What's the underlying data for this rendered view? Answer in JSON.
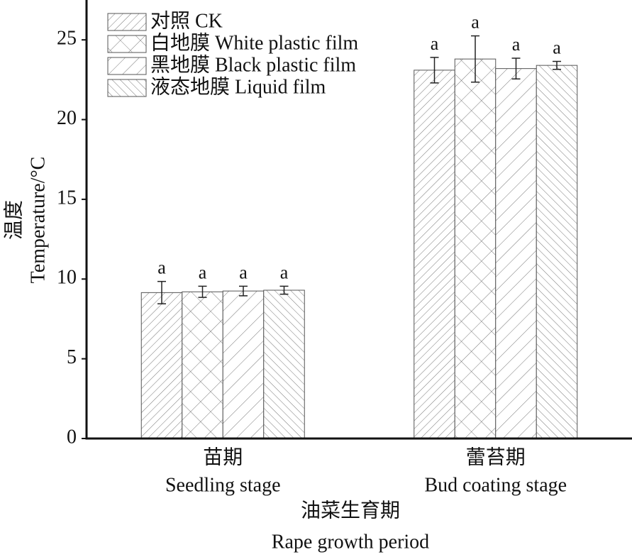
{
  "chart_data": {
    "type": "bar",
    "y_label": [
      "温度",
      "Temperature/°C"
    ],
    "x_label": [
      "油菜生育期",
      "Rape growth period"
    ],
    "categories": [
      [
        "苗期",
        "Seedling stage"
      ],
      [
        "蕾苔期",
        "Bud coating stage"
      ]
    ],
    "ylim": [
      0,
      27.5
    ],
    "yticks": [
      0,
      5,
      10,
      15,
      20,
      25
    ],
    "grid": false,
    "legend": "top-left",
    "color": "#555555",
    "series": [
      {
        "name": "对照 CK",
        "hatch": "dense-right",
        "values": [
          9.15,
          23.1
        ],
        "errors": [
          0.7,
          0.8
        ],
        "value_labels": [
          "a",
          "a"
        ]
      },
      {
        "name": "白地膜 White plastic film",
        "hatch": "cross",
        "values": [
          9.2,
          23.8
        ],
        "errors": [
          0.35,
          1.45
        ],
        "value_labels": [
          "a",
          "a"
        ]
      },
      {
        "name": "黑地膜 Black plastic film",
        "hatch": "sparse-right",
        "values": [
          9.25,
          23.2
        ],
        "errors": [
          0.3,
          0.65
        ],
        "value_labels": [
          "a",
          "a"
        ]
      },
      {
        "name": "液态地膜 Liquid film",
        "hatch": "dense-left",
        "values": [
          9.3,
          23.4
        ],
        "errors": [
          0.25,
          0.25
        ],
        "value_labels": [
          "a",
          "a"
        ]
      }
    ]
  }
}
